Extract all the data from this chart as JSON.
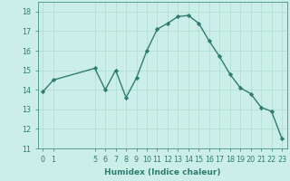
{
  "x": [
    0,
    1,
    5,
    6,
    7,
    8,
    9,
    10,
    11,
    12,
    13,
    14,
    15,
    16,
    17,
    18,
    19,
    20,
    21,
    22,
    23
  ],
  "y": [
    13.9,
    14.5,
    15.1,
    14.0,
    15.0,
    13.6,
    14.6,
    16.0,
    17.1,
    17.4,
    17.75,
    17.8,
    17.4,
    16.5,
    15.7,
    14.8,
    14.1,
    13.8,
    13.1,
    12.9,
    11.5
  ],
  "line_color": "#2e7d70",
  "marker": "D",
  "marker_size": 2.2,
  "bg_color": "#cceee8",
  "grid_color": "#aaddcc",
  "xlabel": "Humidex (Indice chaleur)",
  "xlim": [
    -0.5,
    23.5
  ],
  "ylim": [
    11,
    18.5
  ],
  "yticks": [
    11,
    12,
    13,
    14,
    15,
    16,
    17,
    18
  ],
  "xticks": [
    0,
    1,
    5,
    6,
    7,
    8,
    9,
    10,
    11,
    12,
    13,
    14,
    15,
    16,
    17,
    18,
    19,
    20,
    21,
    22,
    23
  ],
  "xlabel_fontsize": 6.5,
  "tick_fontsize": 5.8,
  "linewidth": 1.0
}
